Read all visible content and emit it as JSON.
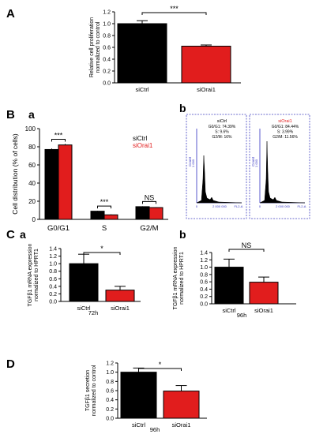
{
  "panels": {
    "A": "A",
    "B": "B",
    "Ba": "a",
    "Bb": "b",
    "C": "C",
    "Ca": "a",
    "Cb": "b",
    "D": "D"
  },
  "colors": {
    "ctrl": "#000000",
    "orai": "#e11d1d",
    "flow_border": "#4040c0",
    "flow_axis": "#3030c0"
  },
  "chart_data": [
    {
      "id": "A",
      "type": "bar",
      "categories": [
        "siCtrl",
        "siOrai1"
      ],
      "values": [
        1.0,
        0.62
      ],
      "errors": [
        0.05,
        0.02
      ],
      "ylabel": "Relative cell proliferation\nnormalized to control",
      "yticks": [
        "0.0",
        "0.2",
        "0.4",
        "0.6",
        "0.8",
        "1.0",
        "1.2"
      ],
      "ylim": [
        0,
        1.2
      ],
      "significance": "***"
    },
    {
      "id": "Ba",
      "type": "bar",
      "categories": [
        "G0/G1",
        "S",
        "G2/M"
      ],
      "series": [
        {
          "name": "siCtrl",
          "values": [
            77,
            9,
            14
          ],
          "errors": [
            1,
            0.5,
            0.5
          ]
        },
        {
          "name": "siOrai1",
          "values": [
            82,
            5,
            13
          ],
          "errors": [
            1,
            0.5,
            0.5
          ]
        }
      ],
      "ylabel": "Cell distribution (% of cells)",
      "yticks": [
        "0",
        "20",
        "40",
        "60",
        "80",
        "100"
      ],
      "ylim": [
        0,
        100
      ],
      "significance": [
        "***",
        "***",
        "NS"
      ],
      "legend_position": "top-right"
    },
    {
      "id": "Bb",
      "type": "histogram",
      "plots": [
        {
          "title": "siCtrl",
          "lines": [
            "G0/G1: 74.39%",
            "S: 9.6%",
            "G2/M: 16%"
          ],
          "ylabel": "Count",
          "yticks": [
            "1 000"
          ],
          "xlabel": "FL2-A",
          "xticks": [
            "2 000 000"
          ],
          "xzero": "0"
        },
        {
          "title": "siOrai1",
          "lines": [
            "G0/G1: 84.44%",
            "S: 3.99%",
            "G2/M: 11.56%"
          ],
          "ylabel": "Count",
          "yticks": [
            "1 000"
          ],
          "xlabel": "FL2-A",
          "xticks": [
            "2 000 000"
          ],
          "xzero": "0"
        }
      ]
    },
    {
      "id": "Ca",
      "type": "bar",
      "categories": [
        "siCtrl",
        "siOrai1"
      ],
      "values": [
        1.0,
        0.3
      ],
      "errors": [
        0.25,
        0.1
      ],
      "ylabel": "TGFβ1 mRNA expression\nnormalized to HPRT1",
      "yticks": [
        "0.0",
        "0.2",
        "0.4",
        "0.6",
        "0.8",
        "1.0",
        "1.2",
        "1.4"
      ],
      "ylim": [
        0,
        1.4
      ],
      "significance": "*",
      "timepoint": "72h"
    },
    {
      "id": "Cb",
      "type": "bar",
      "categories": [
        "siCtrl",
        "siOrai1"
      ],
      "values": [
        1.0,
        0.59
      ],
      "errors": [
        0.22,
        0.14
      ],
      "ylabel": "TGFβ1 mRNA expression\nnormalized to HPRT1",
      "yticks": [
        "0.0",
        "0.2",
        "0.4",
        "0.6",
        "0.8",
        "1.0",
        "1.2",
        "1.4"
      ],
      "ylim": [
        0,
        1.4
      ],
      "significance": "NS",
      "timepoint": "96h"
    },
    {
      "id": "D",
      "type": "bar",
      "categories": [
        "siCtrl",
        "siOrai1"
      ],
      "values": [
        1.0,
        0.59
      ],
      "errors": [
        0.09,
        0.12
      ],
      "ylabel": "TGFβ1 secretion\nnormalized to control",
      "yticks": [
        "0.0",
        "0.2",
        "0.4",
        "0.6",
        "0.8",
        "1.0",
        "1.2"
      ],
      "ylim": [
        0,
        1.2
      ],
      "significance": "*",
      "timepoint": "96h"
    }
  ]
}
